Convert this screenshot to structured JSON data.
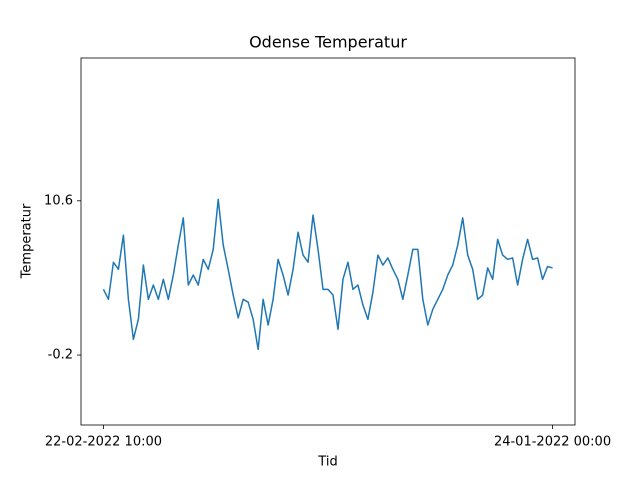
{
  "chart_data": {
    "type": "line",
    "title": "Odense Temperatur",
    "x_label": "Tid",
    "y_label": "Temperatur",
    "categories": [
      "22-02-2022 10:00",
      null,
      null,
      null,
      null,
      null,
      null,
      null,
      null,
      null,
      null,
      null,
      null,
      null,
      null,
      null,
      null,
      null,
      null,
      null,
      null,
      null,
      null,
      null,
      null,
      null,
      null,
      null,
      null,
      null,
      null,
      null,
      null,
      null,
      null,
      null,
      null,
      null,
      null,
      null,
      null,
      null,
      null,
      null,
      null,
      null,
      null,
      null,
      null,
      null,
      null,
      null,
      null,
      null,
      null,
      null,
      null,
      null,
      null,
      null,
      null,
      null,
      null,
      null,
      null,
      null,
      null,
      null,
      null,
      null,
      null,
      null,
      null,
      null,
      null,
      null,
      null,
      null,
      null,
      null,
      null,
      null,
      null,
      null,
      null,
      null,
      null,
      null,
      null,
      null,
      "24-01-2022 00:00"
    ],
    "values": [
      4.4,
      3.7,
      6.3,
      5.8,
      8.2,
      3.7,
      0.9,
      2.3,
      6.1,
      3.7,
      4.7,
      3.7,
      5.1,
      3.7,
      5.4,
      7.5,
      9.4,
      4.7,
      5.4,
      4.7,
      6.5,
      5.8,
      7.2,
      10.7,
      7.5,
      5.8,
      4.0,
      2.4,
      3.7,
      3.5,
      2.3,
      0.2,
      3.7,
      1.9,
      3.7,
      6.5,
      5.4,
      4.0,
      5.8,
      8.4,
      6.8,
      6.3,
      9.6,
      7.2,
      4.4,
      4.4,
      4.0,
      1.6,
      5.1,
      6.3,
      4.4,
      4.7,
      3.3,
      2.3,
      4.2,
      6.8,
      6.1,
      6.6,
      5.8,
      5.1,
      3.7,
      5.4,
      7.2,
      7.2,
      3.7,
      1.9,
      3.0,
      3.7,
      4.4,
      5.4,
      6.1,
      7.5,
      9.4,
      6.8,
      5.8,
      3.7,
      4.0,
      5.9,
      5.1,
      7.9,
      6.8,
      6.5,
      6.6,
      4.7,
      6.5,
      7.9,
      6.5,
      6.6,
      5.1,
      6.0,
      5.9
    ],
    "color": "#1f77b4",
    "ylim": [
      -5.1,
      20.6
    ],
    "yticks": [
      -0.2,
      10.6
    ]
  }
}
